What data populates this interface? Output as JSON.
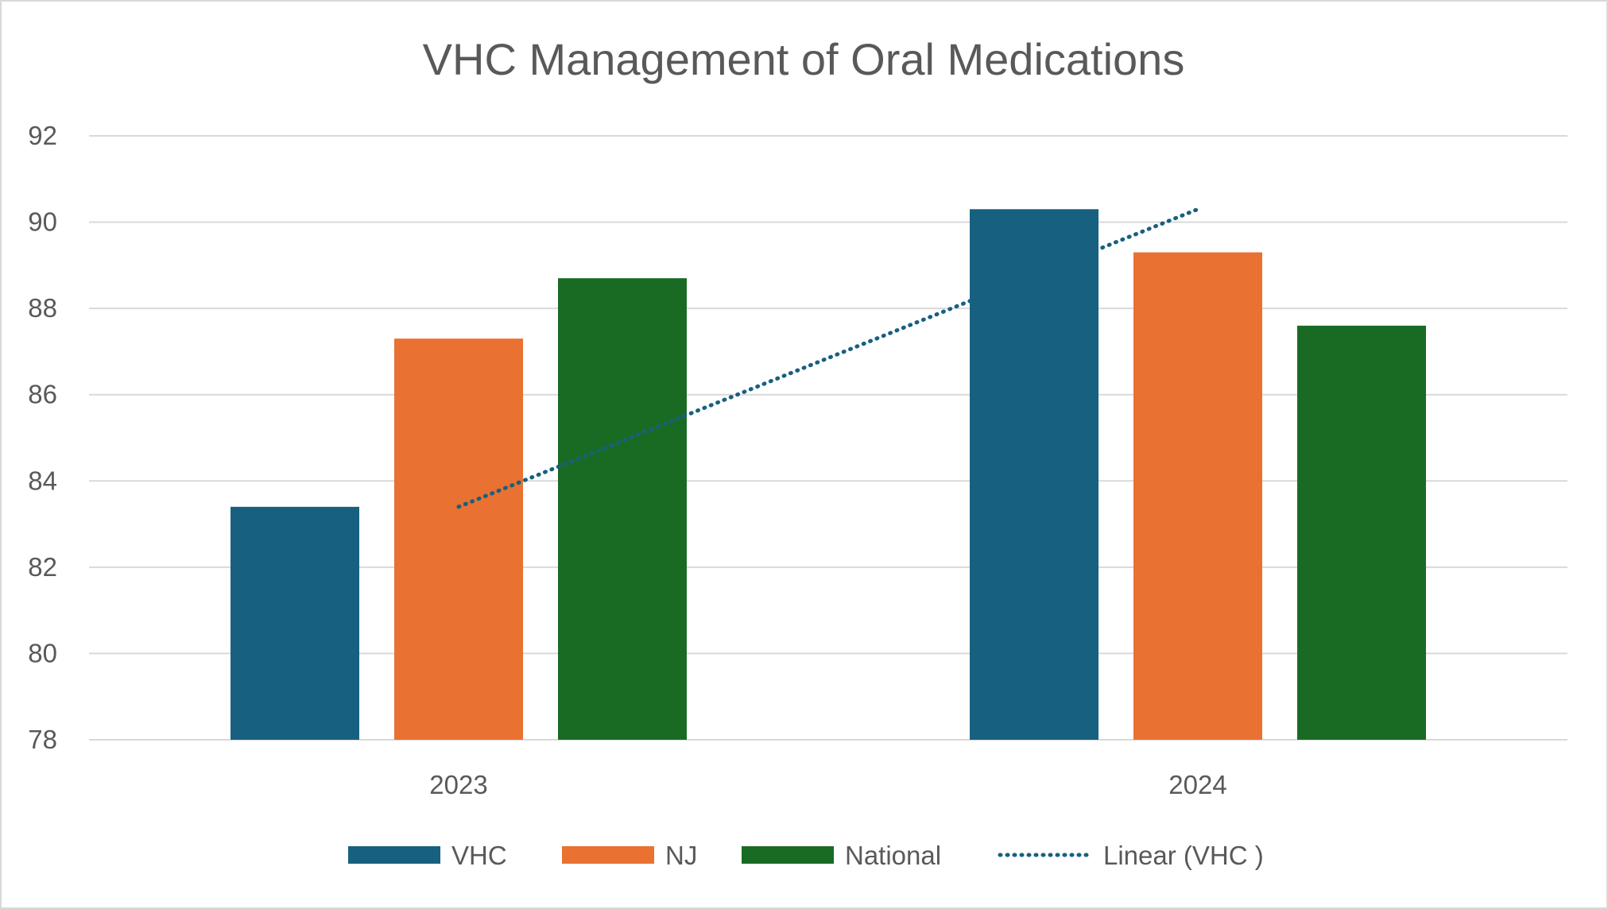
{
  "chart_data": {
    "type": "bar",
    "title": "VHC Management of Oral Medications",
    "categories": [
      "2023",
      "2024"
    ],
    "series": [
      {
        "name": "VHC",
        "color": "#17607f",
        "values": [
          83.4,
          90.3
        ]
      },
      {
        "name": "NJ",
        "color": "#e97132",
        "values": [
          87.3,
          89.3
        ]
      },
      {
        "name": "National",
        "color": "#196b24",
        "values": [
          88.7,
          87.6
        ]
      }
    ],
    "trendline": {
      "name": "Linear (VHC )",
      "series": "VHC",
      "type": "linear",
      "color": "#17607f"
    },
    "ylim": [
      78,
      92
    ],
    "yticks": [
      78,
      80,
      82,
      84,
      86,
      88,
      90,
      92
    ],
    "xlabel": "",
    "ylabel": "",
    "grid": true,
    "legend": "bottom"
  }
}
